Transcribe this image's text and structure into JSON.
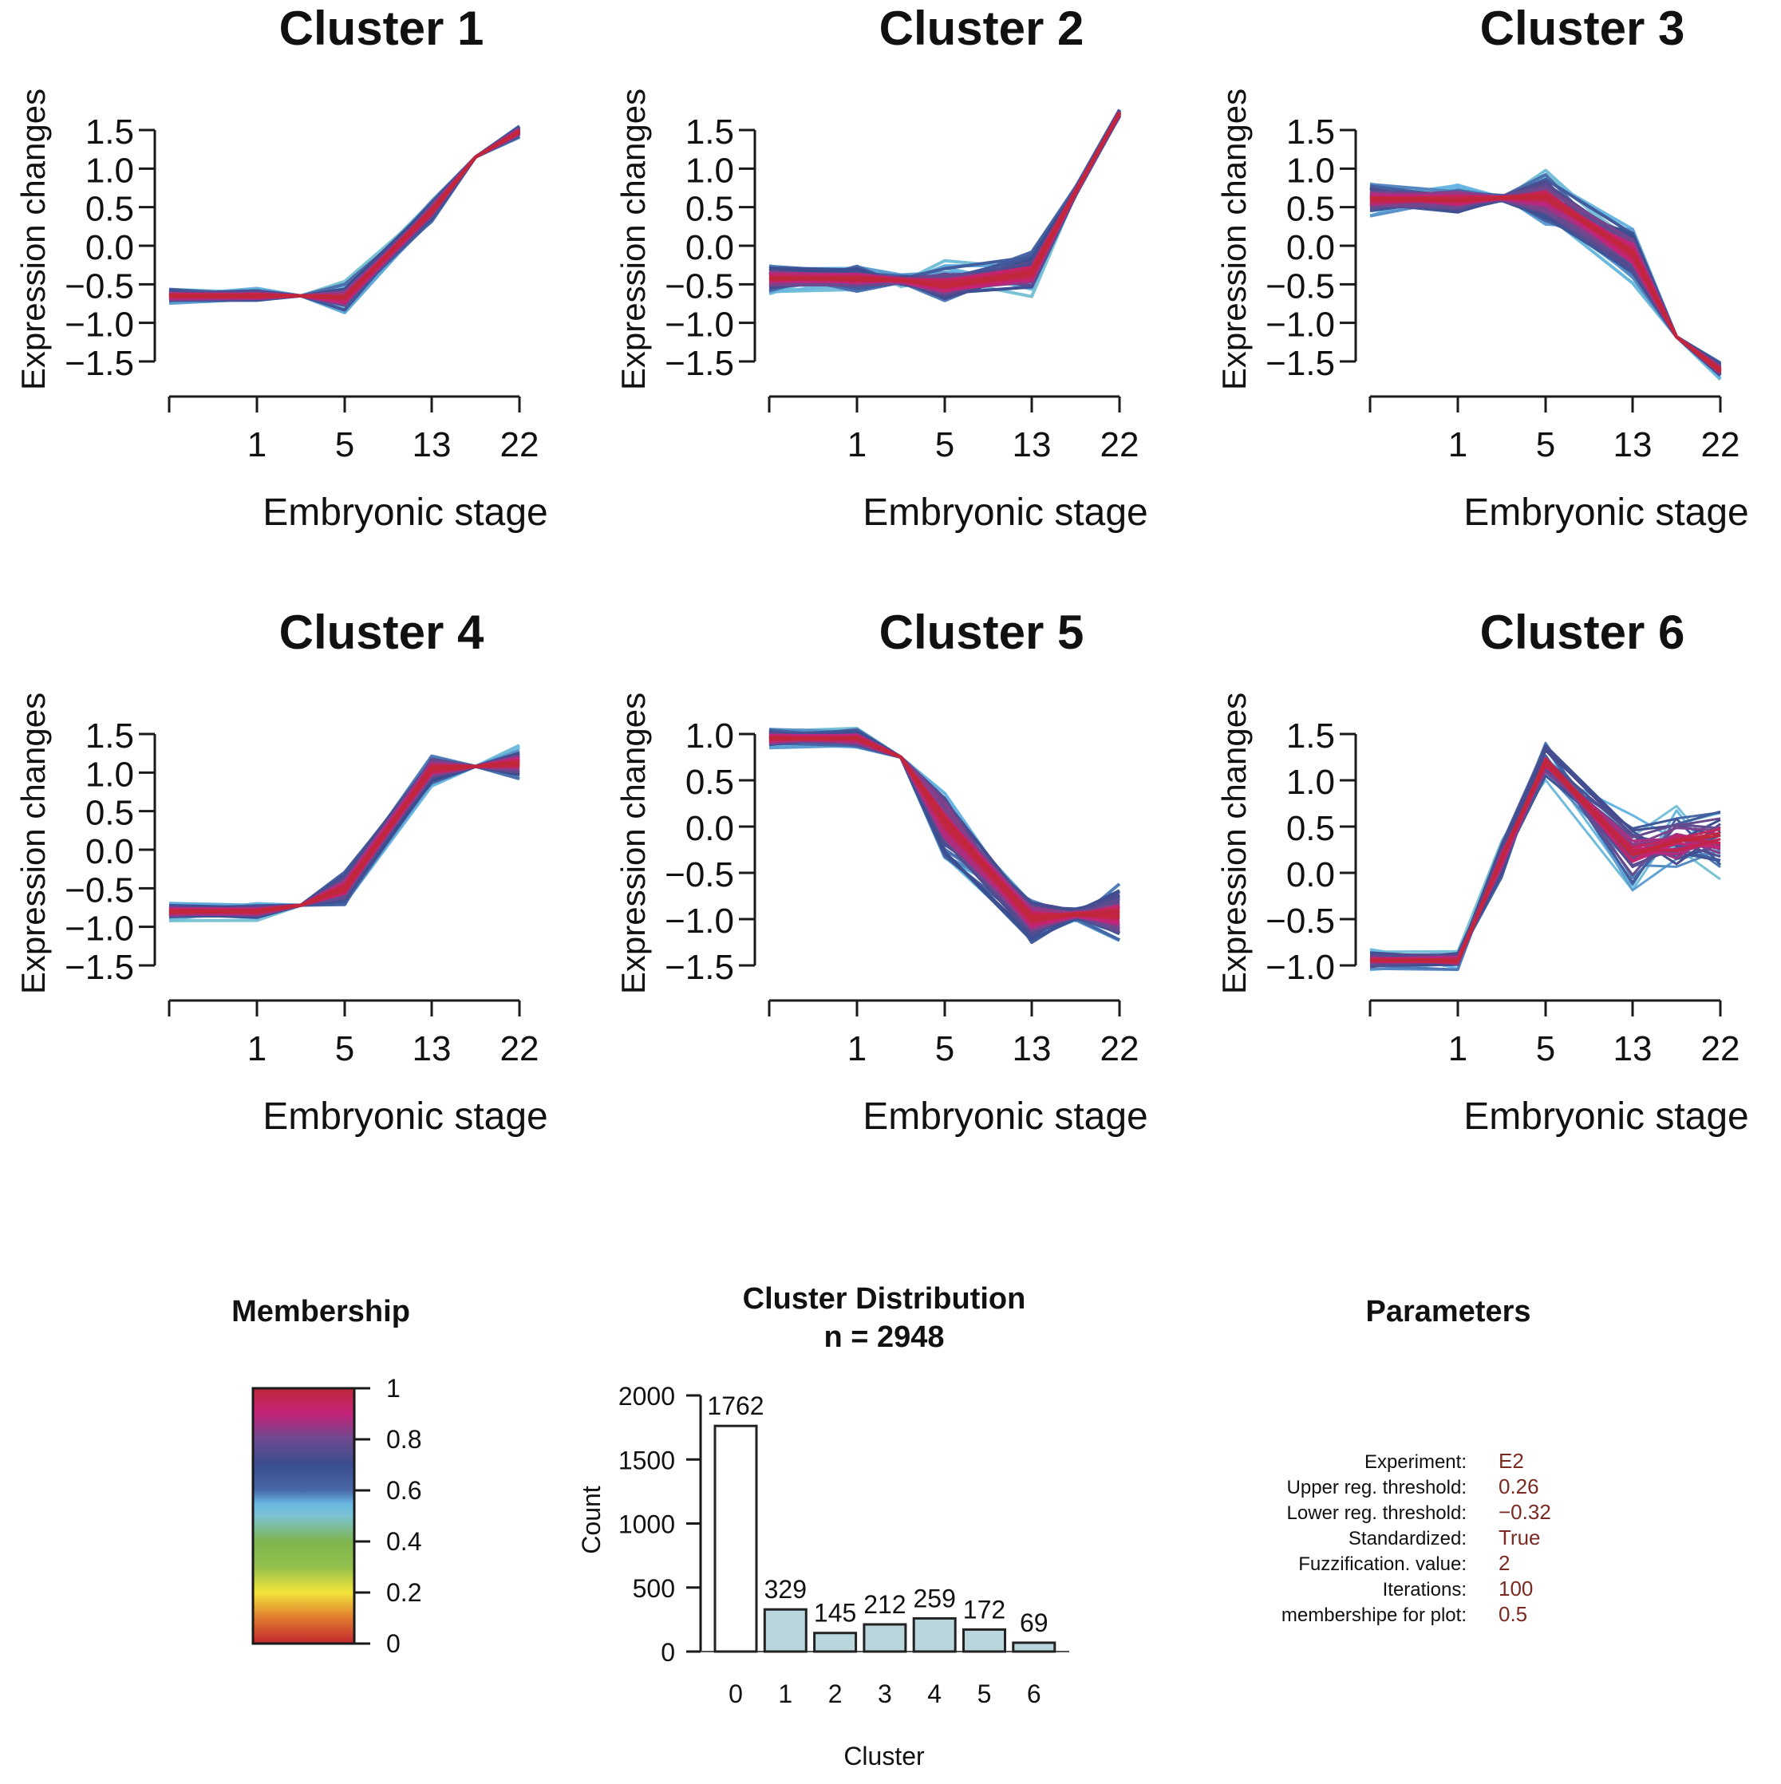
{
  "figure": {
    "clusters_panel": {
      "y_label": "Expression changes",
      "x_label": "Embryonic stage",
      "x_tick_labels": [
        "",
        "1",
        "5",
        "13",
        "22"
      ]
    }
  },
  "chart_data": [
    {
      "type": "line",
      "title": "Cluster 1",
      "xlabel": "Embryonic stage",
      "ylabel": "Expression changes",
      "x_ticks": [
        "",
        "1",
        "5",
        "13",
        "22"
      ],
      "y_ticks": [
        "1.5",
        "1.0",
        "0.5",
        "0.0",
        "−0.5",
        "−1.0",
        "−1.5"
      ],
      "ylim": [
        -1.5,
        1.5
      ],
      "x_positions": [
        0,
        1,
        1.5,
        2,
        3,
        3.5,
        4
      ],
      "centroid": [
        -0.65,
        -0.65,
        -0.65,
        -0.68,
        0.45,
        1.15,
        1.48
      ],
      "spread": [
        0.2,
        0.2,
        0.0,
        0.4,
        0.3,
        0.0,
        0.18
      ],
      "n_lines": 70,
      "grid": false
    },
    {
      "type": "line",
      "title": "Cluster 2",
      "xlabel": "Embryonic stage",
      "ylabel": "Expression changes",
      "x_ticks": [
        "",
        "1",
        "5",
        "13",
        "22"
      ],
      "y_ticks": [
        "1.5",
        "1.0",
        "0.5",
        "0.0",
        "−0.5",
        "−1.0",
        "−1.5"
      ],
      "ylim": [
        -1.5,
        1.5
      ],
      "x_positions": [
        0,
        1,
        1.5,
        2,
        3,
        3.5,
        4
      ],
      "centroid": [
        -0.42,
        -0.42,
        -0.45,
        -0.5,
        -0.35,
        0.7,
        1.72
      ],
      "spread": [
        0.38,
        0.38,
        0.15,
        0.6,
        0.6,
        0.15,
        0.12
      ],
      "n_lines": 70,
      "grid": false
    },
    {
      "type": "line",
      "title": "Cluster 3",
      "xlabel": "Embryonic stage",
      "ylabel": "Expression changes",
      "x_ticks": [
        "",
        "1",
        "5",
        "13",
        "22"
      ],
      "y_ticks": [
        "1.5",
        "1.0",
        "0.5",
        "0.0",
        "−0.5",
        "−1.0",
        "−1.5"
      ],
      "ylim": [
        -1.5,
        1.5
      ],
      "x_positions": [
        0,
        1,
        1.5,
        2,
        3,
        3.5,
        4
      ],
      "centroid": [
        0.6,
        0.6,
        0.62,
        0.62,
        -0.1,
        -1.18,
        -1.62
      ],
      "spread": [
        0.45,
        0.45,
        0.1,
        0.75,
        0.75,
        0.0,
        0.25
      ],
      "n_lines": 70,
      "grid": false
    },
    {
      "type": "line",
      "title": "Cluster 4",
      "xlabel": "Embryonic stage",
      "ylabel": "Expression changes",
      "x_ticks": [
        "",
        "1",
        "5",
        "13",
        "22"
      ],
      "y_ticks": [
        "1.5",
        "1.0",
        "0.5",
        "0.0",
        "−0.5",
        "−1.0",
        "−1.5"
      ],
      "ylim": [
        -1.5,
        1.5
      ],
      "x_positions": [
        0,
        1,
        1.5,
        2,
        3,
        3.5,
        4
      ],
      "centroid": [
        -0.8,
        -0.8,
        -0.72,
        -0.5,
        1.05,
        1.08,
        1.12
      ],
      "spread": [
        0.22,
        0.22,
        0.0,
        0.5,
        0.45,
        0.0,
        0.45
      ],
      "n_lines": 70,
      "grid": false
    },
    {
      "type": "line",
      "title": "Cluster 5",
      "xlabel": "Embryonic stage",
      "ylabel": "Expression changes",
      "x_ticks": [
        "",
        "1",
        "5",
        "13",
        "22"
      ],
      "y_ticks": [
        "1.0",
        "0.5",
        "0.0",
        "−0.5",
        "−1.0",
        "−1.5"
      ],
      "ylim": [
        -1.5,
        1.0
      ],
      "x_positions": [
        0,
        1,
        1.5,
        2,
        3,
        3.5,
        4
      ],
      "centroid": [
        0.95,
        0.95,
        0.75,
        0.05,
        -1.0,
        -0.95,
        -0.95
      ],
      "spread": [
        0.22,
        0.22,
        0.0,
        0.95,
        0.6,
        0.15,
        0.75
      ],
      "n_lines": 70,
      "grid": false
    },
    {
      "type": "line",
      "title": "Cluster 6",
      "xlabel": "Embryonic stage",
      "ylabel": "Expression changes",
      "x_ticks": [
        "",
        "1",
        "5",
        "13",
        "22"
      ],
      "y_ticks": [
        "1.5",
        "1.0",
        "0.5",
        "0.0",
        "−0.5",
        "−1.0"
      ],
      "ylim": [
        -1.0,
        1.5
      ],
      "x_positions": [
        0,
        1,
        1.5,
        2,
        3,
        3.5,
        4
      ],
      "centroid": [
        -0.95,
        -0.95,
        0.15,
        1.2,
        0.2,
        0.3,
        0.4
      ],
      "spread": [
        0.25,
        0.25,
        0.5,
        0.5,
        0.9,
        0.9,
        0.9
      ],
      "n_lines": 40,
      "grid": false
    },
    {
      "type": "heatmap",
      "title": "Membership",
      "colorbar_ticks": [
        "1",
        "0.8",
        "0.6",
        "0.4",
        "0.2",
        "0"
      ],
      "range": [
        0,
        1
      ],
      "color_stops": [
        {
          "value": 0.0,
          "color": "#c2272d"
        },
        {
          "value": 0.1,
          "color": "#e07a2f"
        },
        {
          "value": 0.2,
          "color": "#f2e53a"
        },
        {
          "value": 0.3,
          "color": "#93bf4c"
        },
        {
          "value": 0.4,
          "color": "#7db54f"
        },
        {
          "value": 0.5,
          "color": "#7cc3d3"
        },
        {
          "value": 0.55,
          "color": "#67b6e4"
        },
        {
          "value": 0.6,
          "color": "#4868a8"
        },
        {
          "value": 0.7,
          "color": "#3a4d8f"
        },
        {
          "value": 0.8,
          "color": "#6b4a8f"
        },
        {
          "value": 0.9,
          "color": "#c3247a"
        },
        {
          "value": 1.0,
          "color": "#c1263a"
        }
      ]
    },
    {
      "type": "bar",
      "title": "Cluster Distribution",
      "subtitle": "n = 2948",
      "xlabel": "Cluster",
      "ylabel": "Count",
      "categories": [
        "0",
        "1",
        "2",
        "3",
        "4",
        "5",
        "6"
      ],
      "values": [
        1762,
        329,
        145,
        212,
        259,
        172,
        69
      ],
      "data_labels": [
        "1762",
        "329",
        "145",
        "212",
        "259",
        "172",
        "69"
      ],
      "y_ticks": [
        "2000",
        "1500",
        "1000",
        "500",
        "0"
      ],
      "ylim": [
        0,
        2000
      ],
      "bar_colors": [
        "#ffffff",
        "#b9d6dc",
        "#b9d6dc",
        "#b9d6dc",
        "#b9d6dc",
        "#b9d6dc",
        "#b9d6dc"
      ]
    }
  ],
  "parameters": {
    "title": "Parameters",
    "rows": [
      {
        "label": "Experiment:",
        "value": "E2"
      },
      {
        "label": "Upper reg. threshold:",
        "value": "0.26"
      },
      {
        "label": "Lower reg. threshold:",
        "value": "−0.32"
      },
      {
        "label": "Standardized:",
        "value": "True"
      },
      {
        "label": "Fuzzification. value:",
        "value": "2"
      },
      {
        "label": "Iterations:",
        "value": "100"
      },
      {
        "label": "membershipe for plot:",
        "value": "0.5"
      }
    ]
  }
}
